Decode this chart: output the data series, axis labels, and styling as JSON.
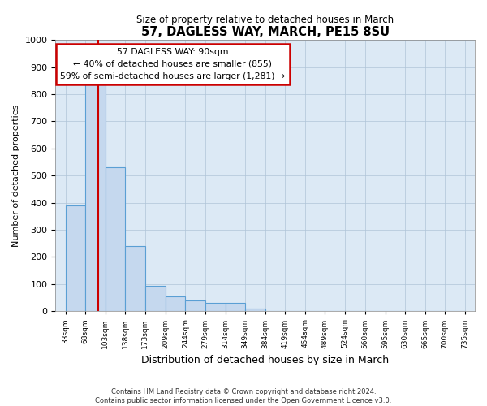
{
  "title": "57, DAGLESS WAY, MARCH, PE15 8SU",
  "subtitle": "Size of property relative to detached houses in March",
  "xlabel": "Distribution of detached houses by size in March",
  "ylabel": "Number of detached properties",
  "footer_line1": "Contains HM Land Registry data © Crown copyright and database right 2024.",
  "footer_line2": "Contains public sector information licensed under the Open Government Licence v3.0.",
  "annotation_title": "57 DAGLESS WAY: 90sqm",
  "annotation_line1": "← 40% of detached houses are smaller (855)",
  "annotation_line2": "59% of semi-detached houses are larger (1,281) →",
  "property_size_sqm": 90,
  "bar_edges": [
    33,
    68,
    103,
    138,
    173,
    209,
    244,
    279,
    314,
    349,
    384,
    419,
    454,
    489,
    524,
    560,
    595,
    630,
    665,
    700,
    735
  ],
  "bar_heights": [
    390,
    840,
    530,
    240,
    95,
    55,
    40,
    30,
    30,
    10,
    0,
    0,
    0,
    0,
    0,
    0,
    0,
    0,
    0,
    0
  ],
  "bar_color": "#c5d8ee",
  "bar_edgecolor": "#5a9fd4",
  "vline_x": 90,
  "vline_color": "#cc0000",
  "vline_linewidth": 1.5,
  "annotation_box_edgecolor": "#cc0000",
  "annotation_box_facecolor": "white",
  "grid_color": "#b0c4d8",
  "background_color": "#dce9f5",
  "ylim": [
    0,
    1000
  ],
  "yticks": [
    0,
    100,
    200,
    300,
    400,
    500,
    600,
    700,
    800,
    900,
    1000
  ],
  "figwidth": 6.0,
  "figheight": 5.0,
  "dpi": 100
}
